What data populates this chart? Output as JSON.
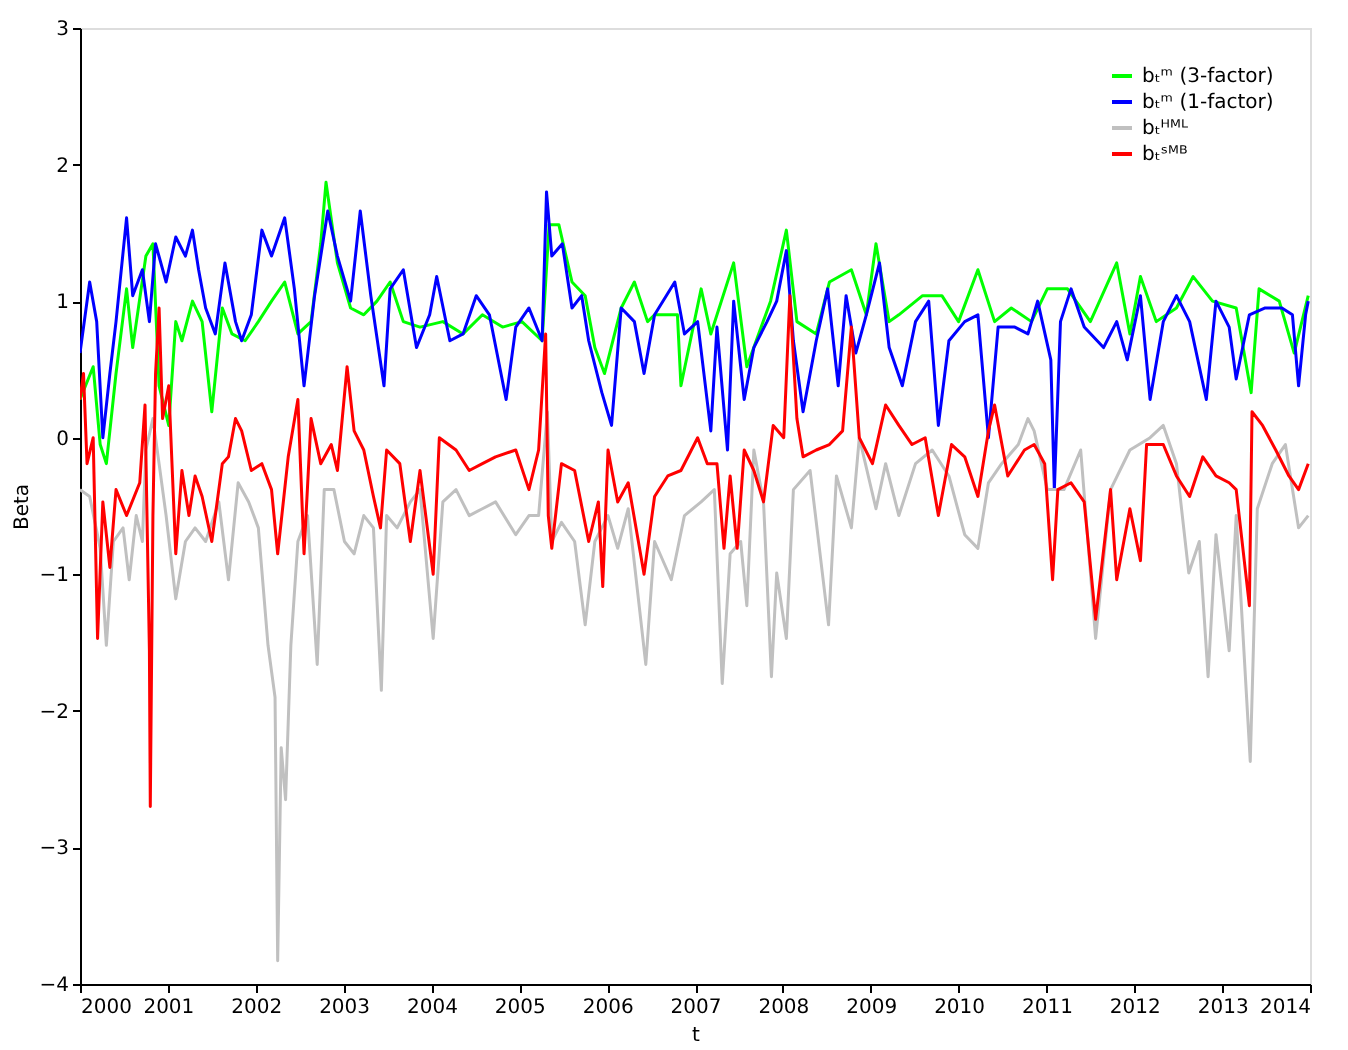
{
  "chart_data": {
    "type": "line",
    "xlabel": "t",
    "ylabel": "Beta",
    "xlim": [
      2000,
      2014
    ],
    "ylim": [
      -4,
      3
    ],
    "xticks": [
      2000,
      2001,
      2002,
      2003,
      2004,
      2005,
      2006,
      2007,
      2008,
      2009,
      2010,
      2011,
      2012,
      2013,
      2014
    ],
    "yticks": [
      -4,
      -3,
      -2,
      -1,
      0,
      1,
      2,
      3
    ],
    "grid": false,
    "legend": "top right",
    "marker": "none",
    "line_style": "solid",
    "series": [
      {
        "name": "bₜᵐ (3-factor)",
        "color": "#00ff00",
        "x": [
          2000.0,
          2000.15,
          2000.23,
          2000.3,
          2000.41,
          2000.53,
          2000.6,
          2000.75,
          2000.83,
          2000.9,
          2001.01,
          2001.09,
          2001.16,
          2001.28,
          2001.39,
          2001.5,
          2001.62,
          2001.73,
          2001.88,
          2002.03,
          2002.18,
          2002.33,
          2002.48,
          2002.63,
          2002.74,
          2002.8,
          2002.93,
          2003.08,
          2003.23,
          2003.38,
          2003.53,
          2003.68,
          2003.87,
          2004.13,
          2004.36,
          2004.58,
          2004.81,
          2005.03,
          2005.26,
          2005.34,
          2005.45,
          2005.6,
          2005.75,
          2005.86,
          2005.97,
          2006.16,
          2006.31,
          2006.46,
          2006.54,
          2006.8,
          2006.84,
          2007.07,
          2007.18,
          2007.44,
          2007.59,
          2007.86,
          2008.04,
          2008.16,
          2008.38,
          2008.53,
          2008.78,
          2008.95,
          2009.06,
          2009.21,
          2009.32,
          2009.59,
          2009.81,
          2010.0,
          2010.22,
          2010.41,
          2010.6,
          2010.83,
          2011.01,
          2011.24,
          2011.5,
          2011.8,
          2011.95,
          2012.07,
          2012.25,
          2012.48,
          2012.67,
          2012.89,
          2013.16,
          2013.33,
          2013.42,
          2013.65,
          2013.82,
          2013.98
        ],
        "values": [
          0.28,
          0.52,
          -0.05,
          -0.19,
          0.47,
          1.09,
          0.66,
          1.33,
          1.42,
          0.38,
          0.09,
          0.85,
          0.71,
          1.0,
          0.85,
          0.19,
          0.95,
          0.76,
          0.71,
          0.85,
          1.0,
          1.14,
          0.76,
          0.85,
          1.42,
          1.87,
          1.28,
          0.95,
          0.9,
          1.0,
          1.14,
          0.85,
          0.81,
          0.85,
          0.76,
          0.9,
          0.81,
          0.85,
          0.71,
          1.56,
          1.56,
          1.14,
          1.04,
          0.66,
          0.47,
          0.95,
          1.14,
          0.85,
          0.9,
          0.9,
          0.38,
          1.09,
          0.76,
          1.28,
          0.52,
          1.0,
          1.52,
          0.85,
          0.76,
          1.14,
          1.23,
          0.9,
          1.42,
          0.85,
          0.9,
          1.04,
          1.04,
          0.85,
          1.23,
          0.85,
          0.95,
          0.85,
          1.09,
          1.09,
          0.85,
          1.28,
          0.76,
          1.18,
          0.85,
          0.95,
          1.18,
          1.0,
          0.95,
          0.33,
          1.09,
          1.0,
          0.62,
          1.04
        ]
      },
      {
        "name": "bₜᵐ (1-factor)",
        "color": "#0000ff",
        "x": [
          2000.0,
          2000.11,
          2000.19,
          2000.26,
          2000.34,
          2000.41,
          2000.53,
          2000.6,
          2000.71,
          2000.79,
          2000.86,
          2000.98,
          2001.09,
          2001.2,
          2001.28,
          2001.35,
          2001.43,
          2001.54,
          2001.65,
          2001.77,
          2001.84,
          2001.95,
          2002.07,
          2002.18,
          2002.33,
          2002.44,
          2002.55,
          2002.67,
          2002.82,
          2002.93,
          2003.08,
          2003.19,
          2003.31,
          2003.46,
          2003.53,
          2003.68,
          2003.83,
          2003.98,
          2004.06,
          2004.21,
          2004.36,
          2004.51,
          2004.66,
          2004.85,
          2004.96,
          2005.11,
          2005.26,
          2005.31,
          2005.37,
          2005.49,
          2005.6,
          2005.71,
          2005.79,
          2005.94,
          2006.05,
          2006.16,
          2006.31,
          2006.42,
          2006.54,
          2006.77,
          2006.88,
          2007.03,
          2007.18,
          2007.25,
          2007.37,
          2007.44,
          2007.56,
          2007.67,
          2007.82,
          2007.93,
          2008.04,
          2008.12,
          2008.23,
          2008.38,
          2008.51,
          2008.63,
          2008.72,
          2008.83,
          2008.95,
          2009.1,
          2009.21,
          2009.36,
          2009.51,
          2009.66,
          2009.77,
          2009.89,
          2010.07,
          2010.22,
          2010.34,
          2010.45,
          2010.64,
          2010.79,
          2010.9,
          2011.05,
          2011.09,
          2011.16,
          2011.28,
          2011.43,
          2011.65,
          2011.8,
          2011.92,
          2012.07,
          2012.18,
          2012.33,
          2012.48,
          2012.63,
          2012.82,
          2012.93,
          2013.08,
          2013.16,
          2013.31,
          2013.49,
          2013.68,
          2013.8,
          2013.87,
          2013.95,
          2013.98
        ],
        "values": [
          0.62,
          1.14,
          0.85,
          0,
          0.47,
          0.85,
          1.61,
          1.04,
          1.23,
          0.85,
          1.42,
          1.14,
          1.47,
          1.33,
          1.52,
          1.23,
          0.95,
          0.76,
          1.28,
          0.85,
          0.71,
          0.9,
          1.52,
          1.33,
          1.61,
          1.09,
          0.38,
          1.04,
          1.66,
          1.33,
          1.0,
          1.66,
          1.04,
          0.38,
          1.09,
          1.23,
          0.66,
          0.9,
          1.18,
          0.71,
          0.76,
          1.04,
          0.9,
          0.28,
          0.81,
          0.95,
          0.71,
          1.8,
          1.33,
          1.42,
          0.95,
          1.04,
          0.71,
          0.33,
          0.09,
          0.95,
          0.85,
          0.47,
          0.9,
          1.14,
          0.76,
          0.85,
          0.05,
          0.81,
          -0.09,
          1.0,
          0.28,
          0.66,
          0.85,
          1.0,
          1.37,
          0.71,
          0.19,
          0.71,
          1.09,
          0.38,
          1.04,
          0.62,
          0.9,
          1.28,
          0.66,
          0.38,
          0.85,
          1.0,
          0.09,
          0.71,
          0.85,
          0.9,
          0,
          0.81,
          0.81,
          0.76,
          1.0,
          0.57,
          -0.38,
          0.85,
          1.09,
          0.81,
          0.66,
          0.85,
          0.57,
          1.04,
          0.28,
          0.85,
          1.04,
          0.85,
          0.28,
          1.0,
          0.81,
          0.43,
          0.9,
          0.95,
          0.95,
          0.9,
          0.38,
          0.9,
          1.0
        ]
      },
      {
        "name": "bₜᴴᴹᴸ",
        "color": "#c0c0c0",
        "x": [
          2000.0,
          2000.11,
          2000.23,
          2000.3,
          2000.38,
          2000.49,
          2000.56,
          2000.64,
          2000.71,
          2000.75,
          2000.83,
          2000.9,
          2000.98,
          2001.09,
          2001.2,
          2001.31,
          2001.43,
          2001.58,
          2001.69,
          2001.8,
          2001.92,
          2002.03,
          2002.14,
          2002.22,
          2002.25,
          2002.29,
          2002.34,
          2002.4,
          2002.48,
          2002.59,
          2002.7,
          2002.78,
          2002.89,
          2003.01,
          2003.12,
          2003.23,
          2003.34,
          2003.43,
          2003.49,
          2003.61,
          2003.76,
          2003.87,
          2004.02,
          2004.13,
          2004.28,
          2004.43,
          2004.58,
          2004.73,
          2004.96,
          2005.11,
          2005.22,
          2005.32,
          2005.37,
          2005.48,
          2005.63,
          2005.75,
          2005.86,
          2006.01,
          2006.12,
          2006.24,
          2006.44,
          2006.54,
          2006.73,
          2006.88,
          2007.07,
          2007.22,
          2007.31,
          2007.4,
          2007.52,
          2007.59,
          2007.67,
          2007.78,
          2007.87,
          2007.93,
          2008.04,
          2008.12,
          2008.31,
          2008.52,
          2008.61,
          2008.78,
          2008.87,
          2009.06,
          2009.17,
          2009.32,
          2009.51,
          2009.7,
          2009.89,
          2010.07,
          2010.22,
          2010.34,
          2010.49,
          2010.68,
          2010.79,
          2010.86,
          2011.01,
          2011.2,
          2011.39,
          2011.56,
          2011.73,
          2011.95,
          2012.18,
          2012.33,
          2012.48,
          2012.62,
          2012.74,
          2012.84,
          2012.93,
          2013.08,
          2013.16,
          2013.32,
          2013.4,
          2013.57,
          2013.72,
          2013.87,
          2013.98
        ],
        "values": [
          -0.38,
          -0.43,
          -0.81,
          -1.52,
          -0.76,
          -0.66,
          -1.04,
          -0.57,
          -0.76,
          -0.09,
          0.14,
          -0.19,
          -0.57,
          -1.18,
          -0.76,
          -0.66,
          -0.76,
          -0.47,
          -1.04,
          -0.33,
          -0.47,
          -0.66,
          -1.52,
          -1.9,
          -3.83,
          -2.27,
          -2.65,
          -1.52,
          -0.76,
          -0.57,
          -1.66,
          -0.38,
          -0.38,
          -0.76,
          -0.85,
          -0.57,
          -0.66,
          -1.85,
          -0.57,
          -0.66,
          -0.47,
          -0.38,
          -1.47,
          -0.47,
          -0.38,
          -0.57,
          -0.52,
          -0.47,
          -0.71,
          -0.57,
          -0.57,
          0.19,
          -0.76,
          -0.62,
          -0.76,
          -1.37,
          -0.76,
          -0.57,
          -0.81,
          -0.52,
          -1.66,
          -0.76,
          -1.04,
          -0.57,
          -0.47,
          -0.38,
          -1.8,
          -0.85,
          -0.76,
          -1.23,
          -0.09,
          -0.47,
          -1.75,
          -0.99,
          -1.47,
          -0.38,
          -0.24,
          -1.37,
          -0.28,
          -0.66,
          0,
          -0.52,
          -0.19,
          -0.57,
          -0.19,
          -0.09,
          -0.28,
          -0.71,
          -0.81,
          -0.33,
          -0.19,
          -0.05,
          0.14,
          0.05,
          -0.38,
          -0.38,
          -0.09,
          -1.47,
          -0.38,
          -0.09,
          0,
          0.09,
          -0.19,
          -0.99,
          -0.76,
          -1.75,
          -0.71,
          -1.56,
          -0.57,
          -2.37,
          -0.52,
          -0.19,
          -0.05,
          -0.66,
          -0.57
        ]
      },
      {
        "name": "bₜˢᴹᴮ",
        "color": "#ff0000",
        "x": [
          2000.0,
          2000.04,
          2000.08,
          2000.15,
          2000.2,
          2000.26,
          2000.34,
          2000.41,
          2000.53,
          2000.68,
          2000.74,
          2000.79,
          2000.8,
          2000.83,
          2000.86,
          2000.9,
          2000.94,
          2001.01,
          2001.09,
          2001.16,
          2001.24,
          2001.31,
          2001.39,
          2001.5,
          2001.62,
          2001.69,
          2001.77,
          2001.84,
          2001.95,
          2002.07,
          2002.18,
          2002.25,
          2002.37,
          2002.48,
          2002.55,
          2002.63,
          2002.74,
          2002.86,
          2002.93,
          2003.04,
          2003.12,
          2003.23,
          2003.34,
          2003.42,
          2003.49,
          2003.64,
          2003.76,
          2003.87,
          2004.02,
          2004.09,
          2004.28,
          2004.43,
          2004.58,
          2004.73,
          2004.96,
          2005.11,
          2005.22,
          2005.3,
          2005.33,
          2005.37,
          2005.48,
          2005.63,
          2005.79,
          2005.9,
          2005.95,
          2006.01,
          2006.12,
          2006.24,
          2006.42,
          2006.54,
          2006.69,
          2006.84,
          2007.03,
          2007.14,
          2007.25,
          2007.33,
          2007.4,
          2007.48,
          2007.56,
          2007.67,
          2007.78,
          2007.89,
          2008.01,
          2008.08,
          2008.16,
          2008.23,
          2008.38,
          2008.53,
          2008.68,
          2008.78,
          2008.87,
          2009.02,
          2009.17,
          2009.32,
          2009.47,
          2009.62,
          2009.77,
          2009.92,
          2010.07,
          2010.22,
          2010.34,
          2010.41,
          2010.56,
          2010.75,
          2010.86,
          2010.98,
          2011.07,
          2011.13,
          2011.28,
          2011.43,
          2011.56,
          2011.73,
          2011.8,
          2011.95,
          2012.07,
          2012.14,
          2012.33,
          2012.48,
          2012.63,
          2012.78,
          2012.93,
          2013.08,
          2013.16,
          2013.31,
          2013.34,
          2013.46,
          2013.61,
          2013.76,
          2013.87,
          2013.98
        ],
        "values": [
          0.28,
          0.47,
          -0.19,
          0,
          -1.47,
          -0.47,
          -0.95,
          -0.38,
          -0.57,
          -0.33,
          0.24,
          -1.56,
          -2.7,
          -0.57,
          0.47,
          0.95,
          0.14,
          0.38,
          -0.85,
          -0.24,
          -0.57,
          -0.28,
          -0.43,
          -0.76,
          -0.19,
          -0.14,
          0.14,
          0.05,
          -0.24,
          -0.19,
          -0.38,
          -0.85,
          -0.14,
          0.28,
          -0.85,
          0.14,
          -0.19,
          -0.05,
          -0.24,
          0.52,
          0.05,
          -0.09,
          -0.43,
          -0.66,
          -0.09,
          -0.19,
          -0.76,
          -0.24,
          -1.0,
          0,
          -0.09,
          -0.24,
          -0.19,
          -0.14,
          -0.09,
          -0.38,
          -0.09,
          0.76,
          -0.57,
          -0.81,
          -0.19,
          -0.24,
          -0.76,
          -0.47,
          -1.09,
          -0.09,
          -0.47,
          -0.33,
          -1.0,
          -0.43,
          -0.28,
          -0.24,
          0,
          -0.19,
          -0.19,
          -0.81,
          -0.28,
          -0.81,
          -0.09,
          -0.24,
          -0.47,
          0.09,
          0,
          1.04,
          0.14,
          -0.14,
          -0.09,
          -0.05,
          0.05,
          0.81,
          0,
          -0.19,
          0.24,
          0.09,
          -0.05,
          0,
          -0.57,
          -0.05,
          -0.14,
          -0.43,
          0.05,
          0.24,
          -0.28,
          -0.09,
          -0.05,
          -0.19,
          -1.04,
          -0.38,
          -0.33,
          -0.47,
          -1.33,
          -0.38,
          -1.04,
          -0.52,
          -0.9,
          -0.05,
          -0.05,
          -0.28,
          -0.43,
          -0.14,
          -0.28,
          -0.33,
          -0.38,
          -1.23,
          0.19,
          0.09,
          -0.09,
          -0.28,
          -0.38,
          -0.19
        ]
      }
    ]
  }
}
